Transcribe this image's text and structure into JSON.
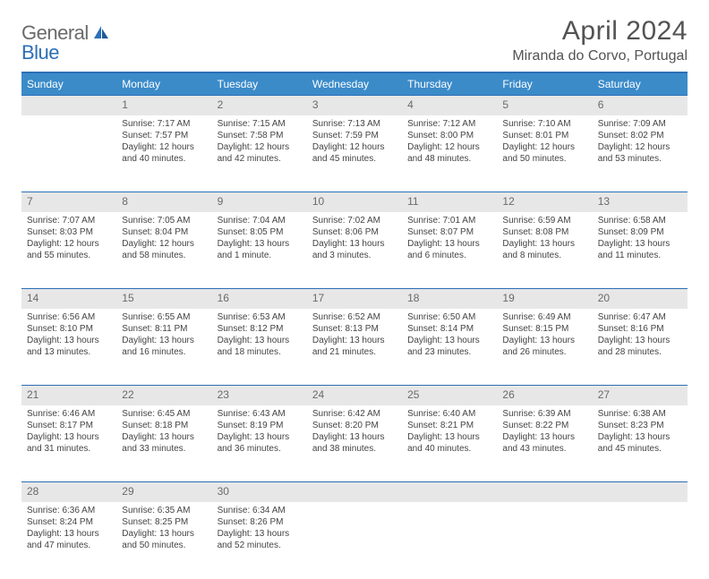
{
  "logo": {
    "text1": "General",
    "text2": "Blue"
  },
  "title": "April 2024",
  "location": "Miranda do Corvo, Portugal",
  "colors": {
    "header_bg": "#3b8bc9",
    "header_border": "#2b6fb6",
    "daynum_bg": "#e7e7e7",
    "text": "#444444",
    "title_text": "#535353"
  },
  "weekdays": [
    "Sunday",
    "Monday",
    "Tuesday",
    "Wednesday",
    "Thursday",
    "Friday",
    "Saturday"
  ],
  "weeks": [
    {
      "nums": [
        "",
        "1",
        "2",
        "3",
        "4",
        "5",
        "6"
      ],
      "cells": [
        null,
        {
          "sunrise": "Sunrise: 7:17 AM",
          "sunset": "Sunset: 7:57 PM",
          "day1": "Daylight: 12 hours",
          "day2": "and 40 minutes."
        },
        {
          "sunrise": "Sunrise: 7:15 AM",
          "sunset": "Sunset: 7:58 PM",
          "day1": "Daylight: 12 hours",
          "day2": "and 42 minutes."
        },
        {
          "sunrise": "Sunrise: 7:13 AM",
          "sunset": "Sunset: 7:59 PM",
          "day1": "Daylight: 12 hours",
          "day2": "and 45 minutes."
        },
        {
          "sunrise": "Sunrise: 7:12 AM",
          "sunset": "Sunset: 8:00 PM",
          "day1": "Daylight: 12 hours",
          "day2": "and 48 minutes."
        },
        {
          "sunrise": "Sunrise: 7:10 AM",
          "sunset": "Sunset: 8:01 PM",
          "day1": "Daylight: 12 hours",
          "day2": "and 50 minutes."
        },
        {
          "sunrise": "Sunrise: 7:09 AM",
          "sunset": "Sunset: 8:02 PM",
          "day1": "Daylight: 12 hours",
          "day2": "and 53 minutes."
        }
      ]
    },
    {
      "nums": [
        "7",
        "8",
        "9",
        "10",
        "11",
        "12",
        "13"
      ],
      "cells": [
        {
          "sunrise": "Sunrise: 7:07 AM",
          "sunset": "Sunset: 8:03 PM",
          "day1": "Daylight: 12 hours",
          "day2": "and 55 minutes."
        },
        {
          "sunrise": "Sunrise: 7:05 AM",
          "sunset": "Sunset: 8:04 PM",
          "day1": "Daylight: 12 hours",
          "day2": "and 58 minutes."
        },
        {
          "sunrise": "Sunrise: 7:04 AM",
          "sunset": "Sunset: 8:05 PM",
          "day1": "Daylight: 13 hours",
          "day2": "and 1 minute."
        },
        {
          "sunrise": "Sunrise: 7:02 AM",
          "sunset": "Sunset: 8:06 PM",
          "day1": "Daylight: 13 hours",
          "day2": "and 3 minutes."
        },
        {
          "sunrise": "Sunrise: 7:01 AM",
          "sunset": "Sunset: 8:07 PM",
          "day1": "Daylight: 13 hours",
          "day2": "and 6 minutes."
        },
        {
          "sunrise": "Sunrise: 6:59 AM",
          "sunset": "Sunset: 8:08 PM",
          "day1": "Daylight: 13 hours",
          "day2": "and 8 minutes."
        },
        {
          "sunrise": "Sunrise: 6:58 AM",
          "sunset": "Sunset: 8:09 PM",
          "day1": "Daylight: 13 hours",
          "day2": "and 11 minutes."
        }
      ]
    },
    {
      "nums": [
        "14",
        "15",
        "16",
        "17",
        "18",
        "19",
        "20"
      ],
      "cells": [
        {
          "sunrise": "Sunrise: 6:56 AM",
          "sunset": "Sunset: 8:10 PM",
          "day1": "Daylight: 13 hours",
          "day2": "and 13 minutes."
        },
        {
          "sunrise": "Sunrise: 6:55 AM",
          "sunset": "Sunset: 8:11 PM",
          "day1": "Daylight: 13 hours",
          "day2": "and 16 minutes."
        },
        {
          "sunrise": "Sunrise: 6:53 AM",
          "sunset": "Sunset: 8:12 PM",
          "day1": "Daylight: 13 hours",
          "day2": "and 18 minutes."
        },
        {
          "sunrise": "Sunrise: 6:52 AM",
          "sunset": "Sunset: 8:13 PM",
          "day1": "Daylight: 13 hours",
          "day2": "and 21 minutes."
        },
        {
          "sunrise": "Sunrise: 6:50 AM",
          "sunset": "Sunset: 8:14 PM",
          "day1": "Daylight: 13 hours",
          "day2": "and 23 minutes."
        },
        {
          "sunrise": "Sunrise: 6:49 AM",
          "sunset": "Sunset: 8:15 PM",
          "day1": "Daylight: 13 hours",
          "day2": "and 26 minutes."
        },
        {
          "sunrise": "Sunrise: 6:47 AM",
          "sunset": "Sunset: 8:16 PM",
          "day1": "Daylight: 13 hours",
          "day2": "and 28 minutes."
        }
      ]
    },
    {
      "nums": [
        "21",
        "22",
        "23",
        "24",
        "25",
        "26",
        "27"
      ],
      "cells": [
        {
          "sunrise": "Sunrise: 6:46 AM",
          "sunset": "Sunset: 8:17 PM",
          "day1": "Daylight: 13 hours",
          "day2": "and 31 minutes."
        },
        {
          "sunrise": "Sunrise: 6:45 AM",
          "sunset": "Sunset: 8:18 PM",
          "day1": "Daylight: 13 hours",
          "day2": "and 33 minutes."
        },
        {
          "sunrise": "Sunrise: 6:43 AM",
          "sunset": "Sunset: 8:19 PM",
          "day1": "Daylight: 13 hours",
          "day2": "and 36 minutes."
        },
        {
          "sunrise": "Sunrise: 6:42 AM",
          "sunset": "Sunset: 8:20 PM",
          "day1": "Daylight: 13 hours",
          "day2": "and 38 minutes."
        },
        {
          "sunrise": "Sunrise: 6:40 AM",
          "sunset": "Sunset: 8:21 PM",
          "day1": "Daylight: 13 hours",
          "day2": "and 40 minutes."
        },
        {
          "sunrise": "Sunrise: 6:39 AM",
          "sunset": "Sunset: 8:22 PM",
          "day1": "Daylight: 13 hours",
          "day2": "and 43 minutes."
        },
        {
          "sunrise": "Sunrise: 6:38 AM",
          "sunset": "Sunset: 8:23 PM",
          "day1": "Daylight: 13 hours",
          "day2": "and 45 minutes."
        }
      ]
    },
    {
      "nums": [
        "28",
        "29",
        "30",
        "",
        "",
        "",
        ""
      ],
      "cells": [
        {
          "sunrise": "Sunrise: 6:36 AM",
          "sunset": "Sunset: 8:24 PM",
          "day1": "Daylight: 13 hours",
          "day2": "and 47 minutes."
        },
        {
          "sunrise": "Sunrise: 6:35 AM",
          "sunset": "Sunset: 8:25 PM",
          "day1": "Daylight: 13 hours",
          "day2": "and 50 minutes."
        },
        {
          "sunrise": "Sunrise: 6:34 AM",
          "sunset": "Sunset: 8:26 PM",
          "day1": "Daylight: 13 hours",
          "day2": "and 52 minutes."
        },
        null,
        null,
        null,
        null
      ]
    }
  ]
}
